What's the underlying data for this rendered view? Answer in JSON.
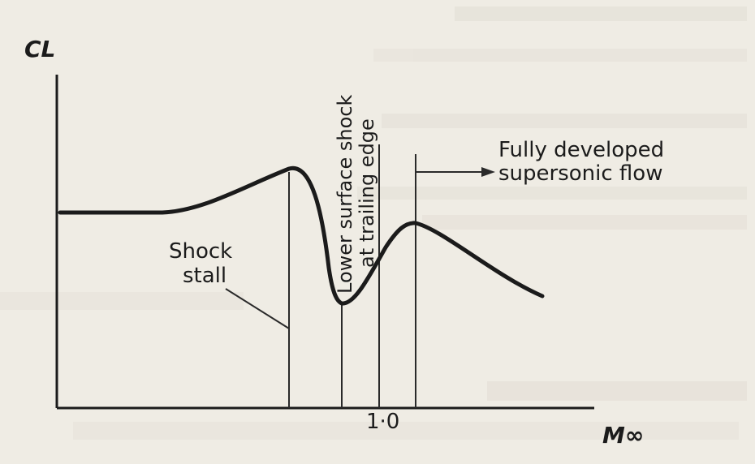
{
  "chart_data": {
    "type": "line",
    "title": "",
    "xlabel": "M∞",
    "ylabel": "CL",
    "x_ticks": [
      "1·0"
    ],
    "annotations": [
      {
        "id": "shock-stall",
        "lines": [
          "Shock",
          "stall"
        ]
      },
      {
        "id": "lower-surface-shock",
        "lines": [
          "Lower surface shock",
          "at trailing edge"
        ]
      },
      {
        "id": "supersonic",
        "lines": [
          "Fully developed",
          "supersonic flow"
        ]
      }
    ],
    "curve_shape": "flat, rise to a maximum, sharp drop (shock stall) to a minimum, rise to a second maximum just above M=1.0, then gradual decline",
    "grid": false,
    "legend": "none"
  }
}
